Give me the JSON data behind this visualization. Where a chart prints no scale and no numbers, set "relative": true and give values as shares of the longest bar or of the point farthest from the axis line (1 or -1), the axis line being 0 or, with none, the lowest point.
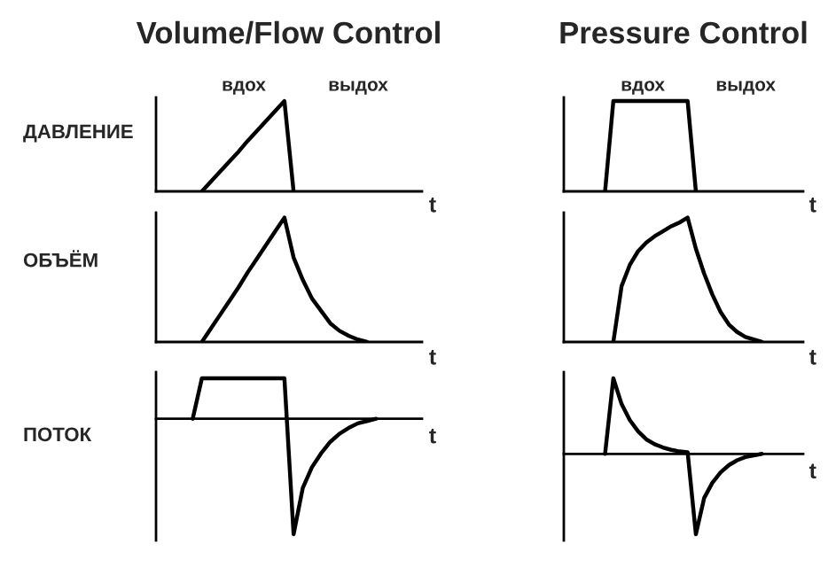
{
  "chart_data": [
    {
      "type": "line",
      "title": "Volume/Flow Control",
      "ylabel": "ДАВЛЕНИЕ",
      "xlabel": "t",
      "annotations": [
        "вдох",
        "выдох"
      ],
      "relative": true,
      "categories": [
        null,
        null,
        null,
        null,
        null,
        null,
        null,
        null,
        null,
        null,
        null,
        null,
        null,
        null,
        null,
        null,
        null,
        null,
        null,
        null,
        null,
        null,
        null,
        null,
        null,
        null,
        null,
        null,
        null,
        null
      ],
      "series": [
        {
          "color": "#000000",
          "values": [
            null,
            null,
            null,
            null,
            null,
            0,
            0.11,
            0.22,
            0.33,
            0.44,
            0.56,
            0.67,
            0.78,
            0.89,
            1,
            0,
            null,
            null,
            null,
            null,
            null,
            null,
            null,
            null,
            null,
            null,
            null,
            null,
            null,
            null
          ]
        }
      ]
    },
    {
      "type": "line",
      "title": "Pressure Control",
      "xlabel": "t",
      "annotations": [
        "вдох",
        "выдох"
      ],
      "relative": true,
      "categories": [
        null,
        null,
        null,
        null,
        null,
        null,
        null,
        null,
        null,
        null,
        null,
        null,
        null,
        null,
        null,
        null,
        null,
        null,
        null,
        null,
        null,
        null,
        null,
        null,
        null,
        null,
        null,
        null,
        null,
        null
      ],
      "series": [
        {
          "color": "#000000",
          "values": [
            null,
            null,
            null,
            null,
            null,
            0,
            1,
            1,
            1,
            1,
            1,
            1,
            1,
            1,
            1,
            1,
            0,
            null,
            null,
            null,
            null,
            null,
            null,
            null,
            null,
            null,
            null,
            null,
            null,
            null
          ]
        }
      ]
    },
    {
      "type": "line",
      "ylabel": "ОБЪЁМ",
      "xlabel": "t",
      "relative": true,
      "categories": [
        null,
        null,
        null,
        null,
        null,
        null,
        null,
        null,
        null,
        null,
        null,
        null,
        null,
        null,
        null,
        null,
        null,
        null,
        null,
        null,
        null,
        null,
        null,
        null,
        null,
        null,
        null,
        null,
        null,
        null
      ],
      "series": [
        {
          "color": "#000000",
          "values": [
            null,
            null,
            null,
            null,
            null,
            0,
            0.11,
            0.22,
            0.33,
            0.44,
            0.56,
            0.67,
            0.78,
            0.89,
            1,
            0.68,
            0.5,
            0.35,
            0.25,
            0.15,
            0.09,
            0.05,
            0.02,
            0,
            null,
            null,
            null,
            null,
            null,
            null
          ]
        }
      ]
    },
    {
      "type": "line",
      "xlabel": "t",
      "relative": true,
      "categories": [
        null,
        null,
        null,
        null,
        null,
        null,
        null,
        null,
        null,
        null,
        null,
        null,
        null,
        null,
        null,
        null,
        null,
        null,
        null,
        null,
        null,
        null,
        null,
        null,
        null,
        null,
        null,
        null,
        null,
        null
      ],
      "series": [
        {
          "color": "#000000",
          "values": [
            null,
            null,
            null,
            null,
            null,
            null,
            0,
            0.45,
            0.62,
            0.73,
            0.8,
            0.85,
            0.89,
            0.93,
            0.96,
            1,
            0.75,
            0.55,
            0.38,
            0.24,
            0.14,
            0.08,
            0.04,
            0.02,
            0,
            null,
            null,
            null,
            null,
            null
          ]
        }
      ]
    },
    {
      "type": "line",
      "ylabel": "ПОТОК",
      "xlabel": "t",
      "relative": true,
      "categories": [
        null,
        null,
        null,
        null,
        null,
        null,
        null,
        null,
        null,
        null,
        null,
        null,
        null,
        null,
        null,
        null,
        null,
        null,
        null,
        null,
        null,
        null,
        null,
        null,
        null,
        null,
        null,
        null,
        null,
        null
      ],
      "series": [
        {
          "color": "#000000",
          "values": [
            null,
            null,
            null,
            null,
            0,
            0.35,
            0.35,
            0.35,
            0.35,
            0.35,
            0.35,
            0.35,
            0.35,
            0.35,
            0.35,
            -1,
            -0.6,
            -0.42,
            -0.3,
            -0.2,
            -0.13,
            -0.08,
            -0.04,
            -0.02,
            0,
            null,
            null,
            null,
            null,
            null
          ]
        }
      ]
    },
    {
      "type": "line",
      "xlabel": "t",
      "relative": true,
      "categories": [
        null,
        null,
        null,
        null,
        null,
        null,
        null,
        null,
        null,
        null,
        null,
        null,
        null,
        null,
        null,
        null,
        null,
        null,
        null,
        null,
        null,
        null,
        null,
        null,
        null,
        null,
        null,
        null,
        null,
        null
      ],
      "series": [
        {
          "color": "#000000",
          "values": [
            null,
            null,
            null,
            null,
            null,
            0,
            0.94,
            0.62,
            0.42,
            0.28,
            0.18,
            0.12,
            0.08,
            0.05,
            0.03,
            0.02,
            -1,
            -0.55,
            -0.36,
            -0.23,
            -0.14,
            -0.08,
            -0.04,
            -0.02,
            0,
            null,
            null,
            null,
            null,
            null
          ]
        }
      ]
    }
  ]
}
